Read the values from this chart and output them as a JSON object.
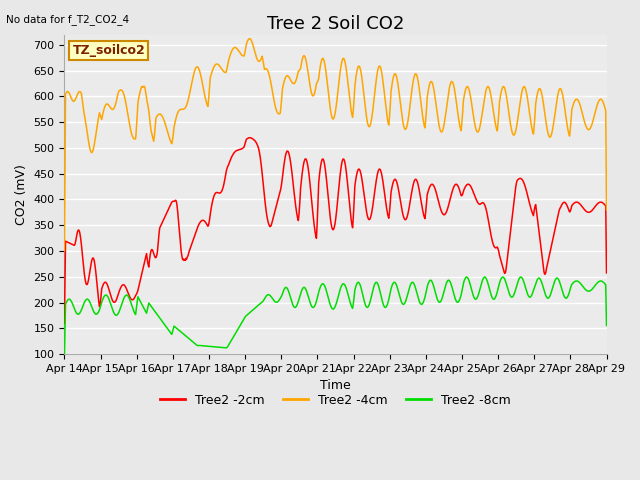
{
  "title": "Tree 2 Soil CO2",
  "top_left_note": "No data for f_T2_CO2_4",
  "ylabel": "CO2 (mV)",
  "xlabel": "Time",
  "ylim": [
    100,
    720
  ],
  "yticks": [
    100,
    150,
    200,
    250,
    300,
    350,
    400,
    450,
    500,
    550,
    600,
    650,
    700
  ],
  "xtick_labels": [
    "Apr 14",
    "Apr 15",
    "Apr 16",
    "Apr 17",
    "Apr 18",
    "Apr 19",
    "Apr 20",
    "Apr 21",
    "Apr 22",
    "Apr 23",
    "Apr 24",
    "Apr 25",
    "Apr 26",
    "Apr 27",
    "Apr 28",
    "Apr 29"
  ],
  "legend_box_label": "TZ_soilco2",
  "legend_box_color": "#FFFFC0",
  "legend_box_border": "#CC8800",
  "line_red_label": "Tree2 -2cm",
  "line_orange_label": "Tree2 -4cm",
  "line_green_label": "Tree2 -8cm",
  "line_red_color": "#FF0000",
  "line_orange_color": "#FFA500",
  "line_green_color": "#00DD00",
  "bg_color": "#E8E8E8",
  "plot_bg_color": "#EBEBEB",
  "grid_color": "#FFFFFF",
  "font_size_title": 13,
  "font_size_axis": 9,
  "font_size_tick": 8,
  "font_size_legend_box": 9
}
